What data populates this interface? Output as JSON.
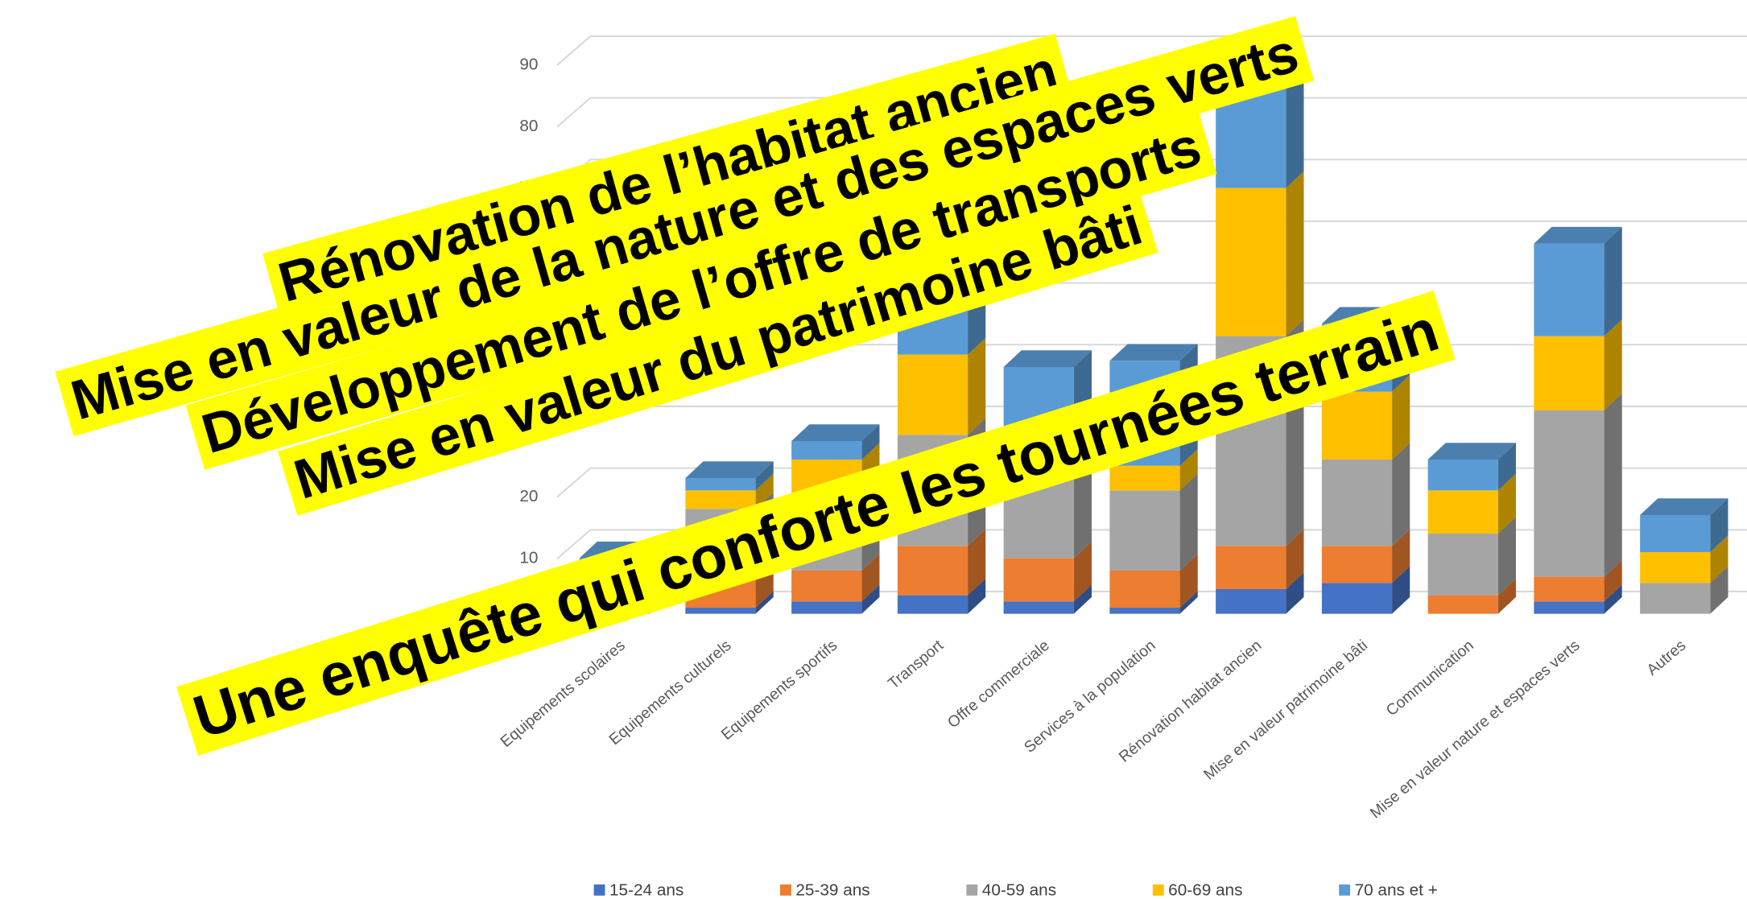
{
  "chart_data": {
    "type": "bar3d_stacked",
    "categories": [
      "Equipements scolaires",
      "Equipements culturels",
      "Equipements sportifs",
      "Transport",
      "Offre commerciale",
      "Services à la population",
      "Rénovation habitat ancien",
      "Mise en valeur patrimoine bâti",
      "Communication",
      "Mise en valeur nature et espaces verts",
      "Autres"
    ],
    "series": [
      {
        "name": "15-24 ans",
        "color": "#4472c4",
        "values": [
          1,
          1,
          2,
          3,
          2,
          1,
          4,
          5,
          0,
          2,
          0
        ]
      },
      {
        "name": "25-39 ans",
        "color": "#ed7d31",
        "values": [
          3,
          5,
          5,
          8,
          7,
          6,
          7,
          6,
          3,
          4,
          0
        ]
      },
      {
        "name": "40-59 ans",
        "color": "#a5a5a5",
        "values": [
          3,
          11,
          12,
          18,
          18,
          13,
          34,
          14,
          10,
          27,
          5
        ]
      },
      {
        "name": "60-69 ans",
        "color": "#ffc000",
        "values": [
          1,
          3,
          6,
          13,
          2,
          4,
          24,
          11,
          7,
          12,
          5
        ]
      },
      {
        "name": "70 ans et +",
        "color": "#5b9bd5",
        "values": [
          1,
          2,
          3,
          7,
          11,
          17,
          16,
          11,
          5,
          15,
          6
        ]
      }
    ],
    "ylim": [
      0,
      90
    ],
    "yticks": [
      0,
      10,
      20,
      30,
      40,
      50,
      60,
      70,
      80,
      90
    ],
    "grid": true,
    "legend": "bottom",
    "annotations": [
      "Rénovation de l’habitat ancien",
      "Mise en valeur de la nature et des espaces verts",
      "Développement de l’offre de transports",
      "Mise en valeur du patrimoine bâti",
      "Une enquête qui conforte les tournées terrain"
    ]
  }
}
